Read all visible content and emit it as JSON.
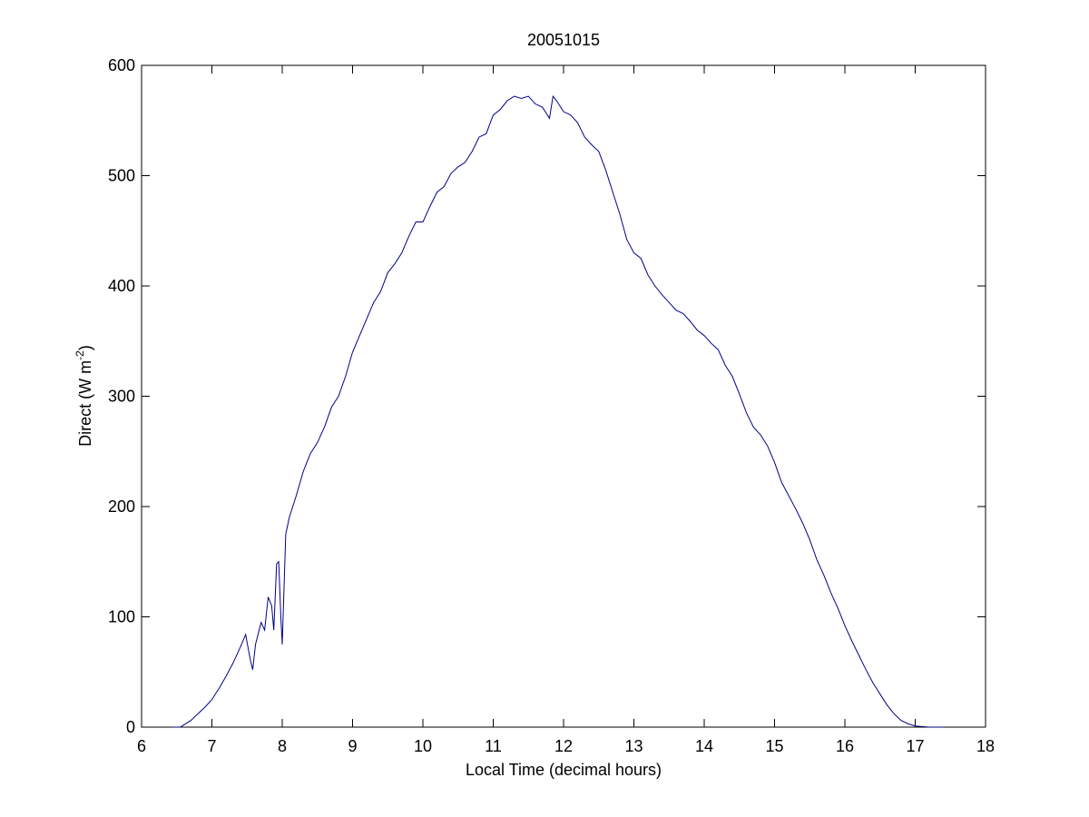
{
  "chart_data": {
    "type": "line",
    "title": "20051015",
    "xlabel": "Local Time (decimal hours)",
    "ylabel": [
      "Direct (W m",
      "-2",
      ")"
    ],
    "xlim": [
      6,
      18
    ],
    "ylim": [
      0,
      600
    ],
    "xticks": [
      6,
      7,
      8,
      9,
      10,
      11,
      12,
      13,
      14,
      15,
      16,
      17,
      18
    ],
    "yticks": [
      0,
      100,
      200,
      300,
      400,
      500,
      600
    ],
    "grid": false,
    "series": [
      {
        "color": "#00008b",
        "x": [
          6.45,
          6.55,
          6.6,
          6.7,
          6.8,
          6.9,
          7.0,
          7.1,
          7.2,
          7.3,
          7.4,
          7.48,
          7.52,
          7.55,
          7.58,
          7.62,
          7.7,
          7.75,
          7.8,
          7.85,
          7.88,
          7.92,
          7.95,
          7.98,
          8.0,
          8.05,
          8.1,
          8.2,
          8.3,
          8.4,
          8.5,
          8.6,
          8.7,
          8.8,
          8.9,
          9.0,
          9.1,
          9.2,
          9.3,
          9.4,
          9.5,
          9.6,
          9.7,
          9.8,
          9.9,
          10.0,
          10.1,
          10.2,
          10.3,
          10.4,
          10.5,
          10.6,
          10.7,
          10.8,
          10.9,
          11.0,
          11.1,
          11.2,
          11.3,
          11.4,
          11.5,
          11.6,
          11.7,
          11.8,
          11.85,
          11.9,
          12.0,
          12.1,
          12.2,
          12.3,
          12.4,
          12.5,
          12.6,
          12.7,
          12.8,
          12.9,
          13.0,
          13.1,
          13.2,
          13.3,
          13.4,
          13.5,
          13.6,
          13.7,
          13.8,
          13.9,
          14.0,
          14.1,
          14.2,
          14.3,
          14.4,
          14.5,
          14.6,
          14.7,
          14.8,
          14.9,
          15.0,
          15.1,
          15.2,
          15.3,
          15.4,
          15.5,
          15.6,
          15.7,
          15.8,
          15.9,
          16.0,
          16.1,
          16.2,
          16.3,
          16.4,
          16.5,
          16.6,
          16.7,
          16.8,
          16.9,
          17.0,
          17.2,
          17.4
        ],
        "values": [
          0,
          0,
          2,
          6,
          12,
          18,
          25,
          35,
          46,
          58,
          72,
          84,
          70,
          60,
          52,
          75,
          95,
          88,
          118,
          110,
          88,
          148,
          150,
          100,
          75,
          175,
          190,
          210,
          232,
          248,
          258,
          272,
          290,
          300,
          318,
          340,
          355,
          370,
          385,
          395,
          412,
          420,
          430,
          445,
          458,
          458,
          472,
          485,
          490,
          502,
          508,
          512,
          522,
          535,
          538,
          555,
          560,
          568,
          572,
          570,
          572,
          565,
          562,
          552,
          572,
          568,
          558,
          555,
          548,
          535,
          528,
          522,
          505,
          485,
          465,
          442,
          430,
          425,
          410,
          400,
          392,
          385,
          378,
          375,
          368,
          360,
          355,
          348,
          342,
          328,
          318,
          302,
          285,
          272,
          265,
          255,
          240,
          222,
          210,
          198,
          185,
          170,
          152,
          138,
          122,
          108,
          92,
          78,
          65,
          52,
          40,
          30,
          20,
          12,
          6,
          3,
          1,
          0,
          0
        ]
      }
    ]
  }
}
